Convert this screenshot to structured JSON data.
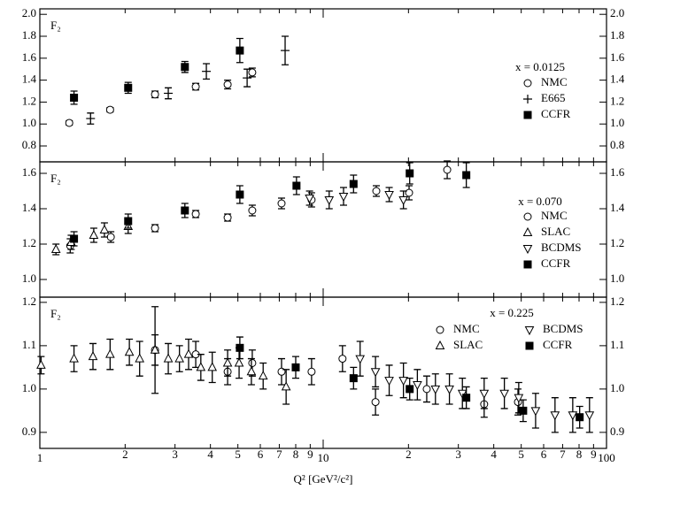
{
  "chart_data": [
    {
      "type": "scatter",
      "y_label": "F₂",
      "xscale": "log",
      "xlim": [
        1,
        100
      ],
      "ylim": [
        0.655,
        2.05
      ],
      "yticks": [
        0.8,
        {
          "value": 1,
          "label": "1.0"
        },
        1.2,
        1.4,
        1.6,
        1.8,
        {
          "value": 2,
          "label": "2.0"
        }
      ],
      "legend_title": "x = 0.0125",
      "legend_columns": 1,
      "series": [
        {
          "name": "NMC",
          "marker": "circle",
          "color": "#000000",
          "x": [
            1.27,
            1.77,
            2.55,
            3.55,
            4.6,
            5.62
          ],
          "values": [
            1.01,
            1.13,
            1.27,
            1.34,
            1.36,
            1.47
          ],
          "errors": [
            0.02,
            0.02,
            0.03,
            0.03,
            0.04,
            0.04
          ]
        },
        {
          "name": "E665",
          "marker": "plus",
          "color": "#000000",
          "x": [
            1.51,
            2.84,
            3.87,
            5.39,
            7.34
          ],
          "values": [
            1.05,
            1.28,
            1.48,
            1.42,
            1.67
          ],
          "errors": [
            0.05,
            0.05,
            0.07,
            0.08,
            0.13
          ]
        },
        {
          "name": "CCFR",
          "marker": "square",
          "color": "#000000",
          "x": [
            1.32,
            2.05,
            3.25,
            5.08
          ],
          "values": [
            1.24,
            1.33,
            1.52,
            1.67
          ],
          "errors": [
            0.06,
            0.05,
            0.05,
            0.11
          ]
        }
      ]
    },
    {
      "type": "scatter",
      "y_label": "F₂",
      "xscale": "log",
      "xlim": [
        1,
        100
      ],
      "ylim": [
        0.9,
        1.665
      ],
      "yticks": [
        {
          "value": 1,
          "label": "1.0"
        },
        1.2,
        1.4,
        1.6
      ],
      "legend_title": "x = 0.070",
      "legend_columns": 1,
      "series": [
        {
          "name": "NMC",
          "marker": "circle",
          "color": "#000000",
          "x": [
            1.28,
            1.78,
            2.55,
            3.55,
            4.6,
            5.62,
            7.13,
            9.1,
            15.4,
            20.1,
            27.4
          ],
          "values": [
            1.19,
            1.24,
            1.29,
            1.37,
            1.35,
            1.39,
            1.43,
            1.45,
            1.5,
            1.49,
            1.62
          ],
          "errors": [
            0.04,
            0.03,
            0.02,
            0.02,
            0.02,
            0.03,
            0.03,
            0.04,
            0.03,
            0.04,
            0.05
          ]
        },
        {
          "name": "SLAC",
          "marker": "triangle-up",
          "color": "#000000",
          "x": [
            1.14,
            1.29,
            1.55,
            1.69,
            2.05
          ],
          "values": [
            1.17,
            1.21,
            1.25,
            1.28,
            1.3
          ],
          "errors": [
            0.03,
            0.04,
            0.04,
            0.04,
            0.04
          ]
        },
        {
          "name": "BCDMS",
          "marker": "triangle-down",
          "color": "#000000",
          "x": [
            8.95,
            10.5,
            11.8,
            17.1,
            19.2
          ],
          "values": [
            1.46,
            1.45,
            1.47,
            1.48,
            1.45
          ],
          "errors": [
            0.04,
            0.05,
            0.05,
            0.04,
            0.05
          ]
        },
        {
          "name": "CCFR",
          "marker": "square",
          "color": "#000000",
          "x": [
            1.32,
            2.05,
            3.25,
            5.08,
            8.05,
            12.8,
            20.2,
            32.0
          ],
          "values": [
            1.23,
            1.33,
            1.39,
            1.48,
            1.53,
            1.54,
            1.6,
            1.59
          ],
          "errors": [
            0.04,
            0.04,
            0.04,
            0.05,
            0.05,
            0.05,
            0.06,
            0.07
          ]
        }
      ]
    },
    {
      "type": "scatter",
      "y_label": "F₂",
      "xscale": "log",
      "xlim": [
        1,
        100
      ],
      "ylim": [
        0.863,
        1.212
      ],
      "x_label": "Q² [GeV²/c²]",
      "xticks": [
        1,
        {
          "value": 2,
          "label": "2"
        },
        {
          "value": 3,
          "label": "3"
        },
        {
          "value": 4,
          "label": "4"
        },
        {
          "value": 5,
          "label": "5"
        },
        {
          "value": 6,
          "label": "6"
        },
        {
          "value": 7,
          "label": "7"
        },
        {
          "value": 8,
          "label": "8"
        },
        {
          "value": 9,
          "label": "9"
        },
        10,
        {
          "value": 20,
          "label": "2"
        },
        {
          "value": 30,
          "label": "3"
        },
        {
          "value": 40,
          "label": "4"
        },
        {
          "value": 50,
          "label": "5"
        },
        {
          "value": 60,
          "label": "6"
        },
        {
          "value": 70,
          "label": "7"
        },
        {
          "value": 80,
          "label": "8"
        },
        {
          "value": 90,
          "label": "9"
        },
        100
      ],
      "yticks": [
        0.9,
        {
          "value": 1,
          "label": "1.0"
        },
        1.1,
        1.2
      ],
      "legend_title": "x = 0.225",
      "legend_columns": 2,
      "series": [
        {
          "name": "NMC",
          "marker": "circle",
          "color": "#000000",
          "x": [
            2.55,
            3.55,
            4.6,
            5.62,
            7.13,
            9.1,
            11.7,
            15.3,
            23.2,
            37.0,
            48.7
          ],
          "values": [
            1.09,
            1.08,
            1.04,
            1.06,
            1.04,
            1.04,
            1.07,
            0.97,
            1.0,
            0.965,
            0.97
          ],
          "errors": [
            0.1,
            0.03,
            0.03,
            0.03,
            0.03,
            0.03,
            0.03,
            0.03,
            0.03,
            0.03,
            0.03
          ]
        },
        {
          "name": "SLAC",
          "marker": "triangle-up",
          "color": "#000000",
          "x": [
            1.01,
            1.32,
            1.54,
            1.77,
            2.07,
            2.25,
            2.55,
            2.84,
            3.11,
            3.35,
            3.7,
            4.06,
            4.6,
            5.05,
            5.58,
            6.14,
            7.4
          ],
          "values": [
            1.055,
            1.07,
            1.075,
            1.08,
            1.085,
            1.07,
            1.09,
            1.07,
            1.07,
            1.08,
            1.05,
            1.05,
            1.06,
            1.06,
            1.04,
            1.03,
            1.005
          ],
          "errors": [
            0.02,
            0.03,
            0.03,
            0.035,
            0.03,
            0.04,
            0.035,
            0.035,
            0.03,
            0.035,
            0.03,
            0.035,
            0.03,
            0.035,
            0.03,
            0.03,
            0.04
          ]
        },
        {
          "name": "BCDMS",
          "marker": "triangle-down",
          "color": "#000000",
          "x": [
            13.5,
            15.3,
            17.1,
            19.2,
            21.5,
            24.9,
            27.9,
            31.0,
            37.0,
            43.6,
            49.0,
            56.2,
            65.8,
            76.0,
            87.1
          ],
          "values": [
            1.07,
            1.04,
            1.02,
            1.02,
            1.01,
            1.0,
            1.0,
            0.99,
            0.99,
            0.99,
            0.98,
            0.95,
            0.94,
            0.94,
            0.94
          ],
          "errors": [
            0.04,
            0.035,
            0.035,
            0.04,
            0.035,
            0.035,
            0.035,
            0.035,
            0.035,
            0.035,
            0.035,
            0.04,
            0.04,
            0.04,
            0.04
          ]
        },
        {
          "name": "CCFR",
          "marker": "square",
          "color": "#000000",
          "x": [
            5.08,
            8.0,
            12.8,
            20.2,
            32.0,
            50.8,
            80.4
          ],
          "values": [
            1.095,
            1.05,
            1.025,
            1.0,
            0.98,
            0.95,
            0.935
          ],
          "errors": [
            0.025,
            0.025,
            0.025,
            0.025,
            0.025,
            0.025,
            0.025
          ]
        }
      ]
    }
  ]
}
